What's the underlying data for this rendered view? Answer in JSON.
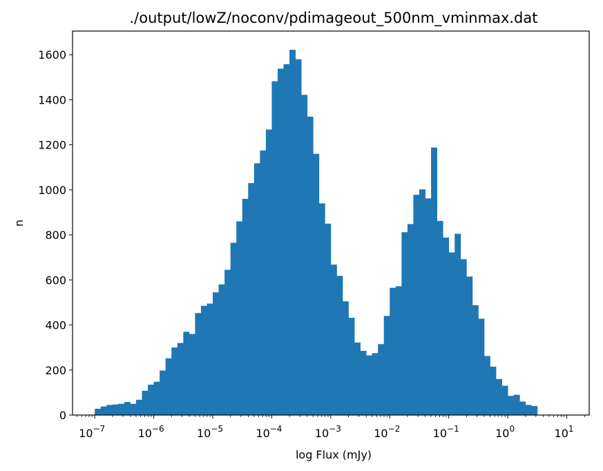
{
  "chart_data": {
    "type": "bar",
    "title": "./output/lowZ/noconv/pdimageout_500nm_vminmax.dat",
    "xlabel": "log Flux (mJy)",
    "ylabel": "n",
    "x_scale": "log",
    "xlim": [
      4.2e-08,
      24
    ],
    "ylim": [
      0,
      1705
    ],
    "bar_color": "#1f77b4",
    "bin_edges_log10_range": [
      -7,
      1
    ],
    "bin_count": 80,
    "x_ticks": [
      {
        "base": "10",
        "exp": "−7"
      },
      {
        "base": "10",
        "exp": "−6"
      },
      {
        "base": "10",
        "exp": "−5"
      },
      {
        "base": "10",
        "exp": "−4"
      },
      {
        "base": "10",
        "exp": "−3"
      },
      {
        "base": "10",
        "exp": "−2"
      },
      {
        "base": "10",
        "exp": "−1"
      },
      {
        "base": "10",
        "exp": "0"
      },
      {
        "base": "10",
        "exp": "1"
      }
    ],
    "y_ticks": [
      "0",
      "200",
      "400",
      "600",
      "800",
      "1000",
      "1200",
      "1400",
      "1600"
    ],
    "values": [
      28,
      38,
      45,
      47,
      50,
      58,
      50,
      68,
      108,
      135,
      148,
      198,
      252,
      300,
      320,
      370,
      360,
      453,
      485,
      495,
      545,
      580,
      645,
      765,
      860,
      960,
      1030,
      1118,
      1175,
      1268,
      1482,
      1538,
      1558,
      1622,
      1580,
      1422,
      1325,
      1160,
      940,
      850,
      668,
      618,
      505,
      432,
      322,
      285,
      265,
      275,
      315,
      440,
      565,
      572,
      812,
      848,
      978,
      1002,
      962,
      1188,
      862,
      788,
      722,
      805,
      692,
      615,
      488,
      428,
      262,
      215,
      160,
      130,
      85,
      90,
      60,
      45,
      40,
      0,
      0,
      0,
      0,
      0
    ]
  }
}
